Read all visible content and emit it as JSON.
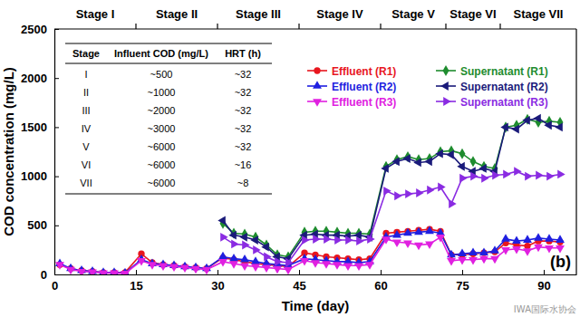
{
  "chart_data": {
    "type": "line",
    "xlabel": "Time (day)",
    "ylabel": "COD concentration (mg/L)",
    "x": [
      1,
      3,
      5,
      7,
      9,
      11,
      13,
      16,
      18,
      20,
      22,
      24,
      26,
      28,
      31,
      33,
      35,
      37,
      39,
      41,
      43,
      46,
      48,
      50,
      52,
      54,
      56,
      58,
      61,
      63,
      65,
      67,
      69,
      71,
      73,
      75,
      77,
      79,
      81,
      83,
      85,
      87,
      89,
      91,
      93
    ],
    "xlim": [
      0,
      96
    ],
    "xticks": [
      0,
      15,
      30,
      45,
      60,
      75,
      90
    ],
    "ylim": [
      0,
      2500
    ],
    "yticks": [
      0,
      500,
      1000,
      1500,
      2000,
      2500
    ],
    "grid": false,
    "legend": "top-right",
    "series": [
      {
        "name": "Effluent (R1)",
        "color": "#e8161e",
        "marker": "circle",
        "line_style": "solid",
        "values": [
          100,
          60,
          40,
          30,
          20,
          20,
          20,
          210,
          120,
          100,
          90,
          80,
          70,
          60,
          170,
          150,
          130,
          110,
          100,
          90,
          80,
          220,
          200,
          180,
          170,
          160,
          150,
          160,
          420,
          430,
          440,
          450,
          460,
          440,
          200,
          200,
          210,
          220,
          230,
          320,
          300,
          290,
          340,
          340,
          330
        ]
      },
      {
        "name": "Effluent (R2)",
        "color": "#1f1fe0",
        "marker": "triangle-up",
        "line_style": "solid",
        "values": [
          110,
          60,
          40,
          30,
          20,
          20,
          15,
          150,
          110,
          100,
          90,
          80,
          70,
          60,
          180,
          160,
          150,
          130,
          110,
          100,
          90,
          160,
          150,
          140,
          130,
          130,
          120,
          130,
          380,
          400,
          420,
          430,
          440,
          420,
          200,
          210,
          220,
          220,
          240,
          360,
          340,
          350,
          370,
          360,
          350
        ]
      },
      {
        "name": "Effluent (R3)",
        "color": "#e020e0",
        "marker": "triangle-down",
        "line_style": "solid",
        "values": [
          100,
          50,
          30,
          25,
          15,
          15,
          10,
          140,
          100,
          90,
          80,
          70,
          60,
          50,
          130,
          110,
          90,
          80,
          70,
          60,
          50,
          140,
          120,
          110,
          100,
          90,
          90,
          100,
          360,
          330,
          320,
          300,
          310,
          380,
          140,
          150,
          150,
          160,
          160,
          250,
          260,
          240,
          280,
          270,
          270
        ]
      },
      {
        "name": "Supernatant (R1)",
        "color": "#1e8c2e",
        "marker": "diamond",
        "line_style": "solid",
        "values": [
          null,
          null,
          null,
          null,
          null,
          null,
          null,
          null,
          null,
          null,
          null,
          null,
          null,
          null,
          520,
          420,
          410,
          380,
          300,
          200,
          180,
          430,
          440,
          440,
          430,
          420,
          420,
          410,
          1100,
          1170,
          1200,
          1170,
          1180,
          1250,
          1260,
          1230,
          1150,
          1100,
          1080,
          1500,
          1520,
          1580,
          1550,
          1560,
          1550
        ]
      },
      {
        "name": "Supernatant (R2)",
        "color": "#1a1a7a",
        "marker": "triangle-left",
        "line_style": "solid",
        "values": [
          null,
          null,
          null,
          null,
          null,
          null,
          null,
          null,
          null,
          null,
          null,
          null,
          null,
          null,
          550,
          400,
          380,
          350,
          280,
          180,
          160,
          400,
          410,
          400,
          400,
          390,
          400,
          380,
          1080,
          1150,
          1180,
          1140,
          1150,
          1230,
          1220,
          1100,
          1050,
          1080,
          1050,
          1500,
          1480,
          1570,
          1590,
          1520,
          1500
        ]
      },
      {
        "name": "Supernatant (R3)",
        "color": "#8a2be2",
        "marker": "triangle-right",
        "line_style": "solid",
        "values": [
          null,
          null,
          null,
          null,
          null,
          null,
          null,
          null,
          null,
          null,
          null,
          null,
          null,
          null,
          380,
          310,
          300,
          250,
          180,
          130,
          120,
          350,
          360,
          360,
          350,
          350,
          340,
          360,
          850,
          800,
          820,
          830,
          860,
          890,
          720,
          980,
          1000,
          980,
          1010,
          1020,
          1050,
          1000,
          1010,
          1000,
          1020
        ]
      }
    ],
    "stages": [
      {
        "label": "Stage I",
        "start": 0,
        "end": 15
      },
      {
        "label": "Stage II",
        "start": 15,
        "end": 30
      },
      {
        "label": "Stage III",
        "start": 30,
        "end": 45
      },
      {
        "label": "Stage IV",
        "start": 45,
        "end": 60
      },
      {
        "label": "Stage V",
        "start": 60,
        "end": 72
      },
      {
        "label": "Stage VI",
        "start": 72,
        "end": 82
      },
      {
        "label": "Stage VII",
        "start": 82,
        "end": 96
      }
    ],
    "inset_table": {
      "columns": [
        "Stage",
        "Influent COD (mg/L)",
        "HRT (h)"
      ],
      "rows": [
        [
          "I",
          "~500",
          "~32"
        ],
        [
          "II",
          "~1000",
          "~32"
        ],
        [
          "III",
          "~2000",
          "~32"
        ],
        [
          "IV",
          "~3000",
          "~32"
        ],
        [
          "V",
          "~6000",
          "~32"
        ],
        [
          "VI",
          "~6000",
          "~16"
        ],
        [
          "VII",
          "~6000",
          "~8"
        ]
      ]
    },
    "annotations": [
      "(b)",
      "IWA国际水协会"
    ]
  }
}
